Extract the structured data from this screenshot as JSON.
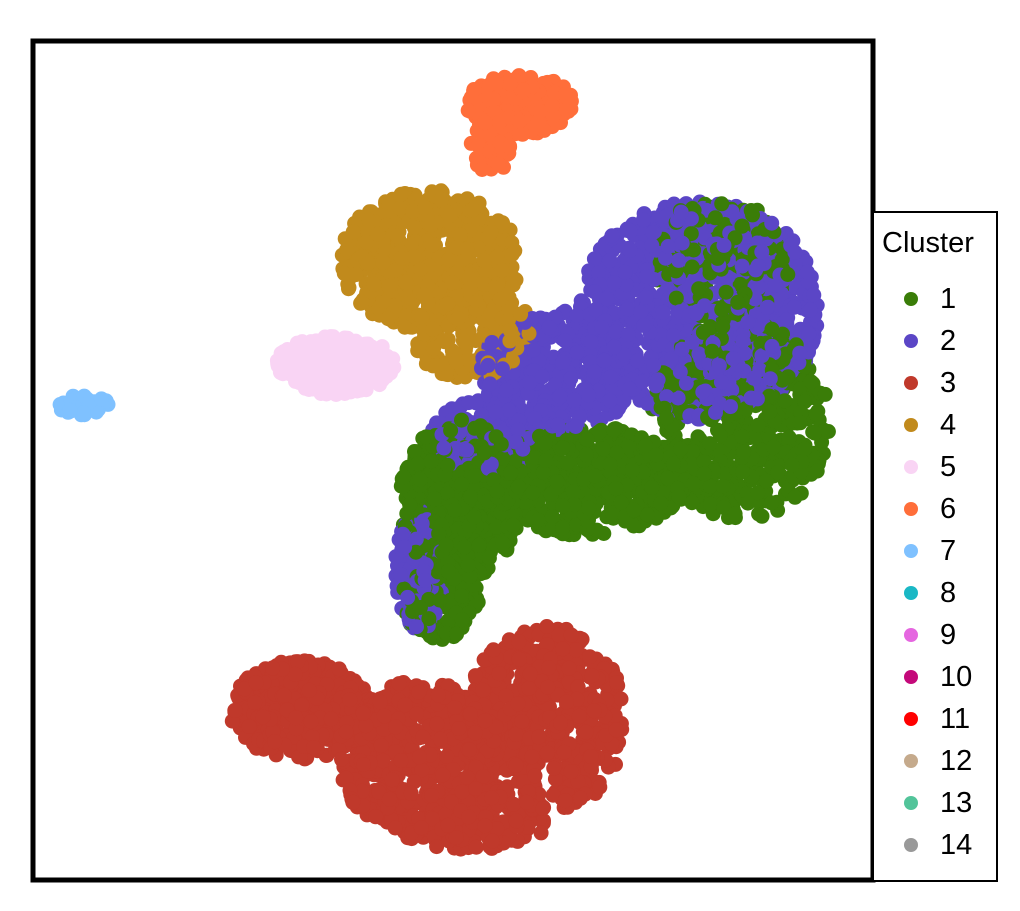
{
  "chart_data": {
    "type": "scatter",
    "title": "",
    "xlabel": "",
    "ylabel": "",
    "axes_visible": false,
    "grid": false,
    "legend_position": "right",
    "legend_title": "Cluster",
    "series": [
      {
        "name": "1",
        "color": "#3a7d08"
      },
      {
        "name": "2",
        "color": "#5b46c6"
      },
      {
        "name": "3",
        "color": "#c0392b"
      },
      {
        "name": "4",
        "color": "#c18a1c"
      },
      {
        "name": "5",
        "color": "#f9d4f4"
      },
      {
        "name": "6",
        "color": "#ff6e3a"
      },
      {
        "name": "7",
        "color": "#7fc1ff"
      },
      {
        "name": "8",
        "color": "#1ab8c5"
      },
      {
        "name": "9",
        "color": "#e566e0"
      },
      {
        "name": "10",
        "color": "#c4097a"
      },
      {
        "name": "11",
        "color": "#ff0000"
      },
      {
        "name": "12",
        "color": "#c5aa8c"
      },
      {
        "name": "13",
        "color": "#52c49a"
      },
      {
        "name": "14",
        "color": "#999999"
      }
    ]
  }
}
